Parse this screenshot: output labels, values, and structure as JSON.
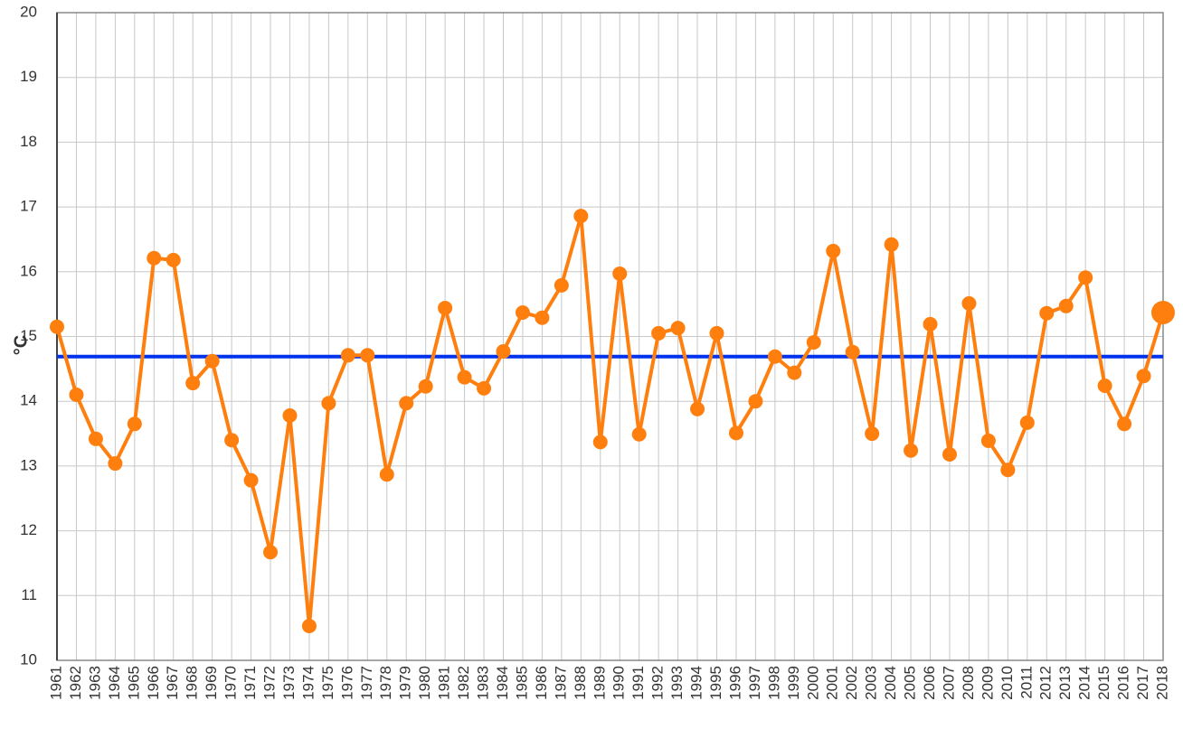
{
  "chart_data": {
    "type": "line",
    "y_label": "°C",
    "categories": [
      "1961",
      "1962",
      "1963",
      "1964",
      "1965",
      "1966",
      "1967",
      "1968",
      "1969",
      "1970",
      "1971",
      "1972",
      "1973",
      "1974",
      "1975",
      "1976",
      "1977",
      "1978",
      "1979",
      "1980",
      "1981",
      "1982",
      "1983",
      "1984",
      "1985",
      "1986",
      "1987",
      "1988",
      "1989",
      "1990",
      "1991",
      "1992",
      "1993",
      "1994",
      "1995",
      "1996",
      "1997",
      "1998",
      "1999",
      "2000",
      "2001",
      "2002",
      "2003",
      "2004",
      "2005",
      "2006",
      "2007",
      "2008",
      "2009",
      "2010",
      "2011",
      "2012",
      "2013",
      "2014",
      "2015",
      "2016",
      "2017",
      "2018"
    ],
    "series": [
      {
        "color": "#ff7f0e",
        "values": [
          15.15,
          14.1,
          13.42,
          13.04,
          13.65,
          16.21,
          16.18,
          14.28,
          14.62,
          13.4,
          12.78,
          11.67,
          13.78,
          10.53,
          13.97,
          14.71,
          14.71,
          12.87,
          13.97,
          14.23,
          15.44,
          14.37,
          14.2,
          14.77,
          15.37,
          15.29,
          15.79,
          16.86,
          13.37,
          15.97,
          13.49,
          15.05,
          15.13,
          13.88,
          15.05,
          13.51,
          14.0,
          14.69,
          14.44,
          14.91,
          16.32,
          14.76,
          13.5,
          16.42,
          13.24,
          15.19,
          13.18,
          15.51,
          13.39,
          12.94,
          13.67,
          15.36,
          15.47,
          15.91,
          14.24,
          13.65,
          14.39,
          15.37
        ]
      }
    ],
    "reference_line": {
      "value": 14.69,
      "color": "#0033ee"
    },
    "ylim": [
      10,
      20
    ],
    "yticks": [
      10,
      11,
      12,
      13,
      14,
      15,
      16,
      17,
      18,
      19,
      20
    ],
    "grid": true
  }
}
